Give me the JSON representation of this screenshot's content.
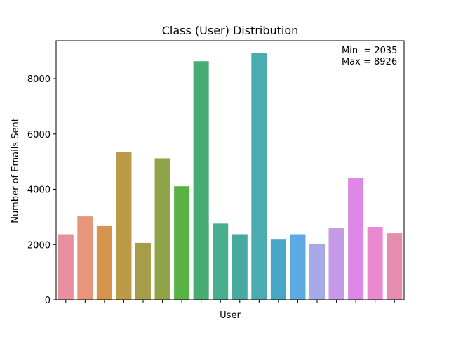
{
  "chart_data": {
    "type": "bar",
    "title": "Class (User) Distribution",
    "xlabel": "User",
    "ylabel": "Number of Emails Sent",
    "ylim": [
      0,
      9373
    ],
    "yticks": [
      0,
      2000,
      4000,
      6000,
      8000
    ],
    "grid": false,
    "legend": "none",
    "annotation": {
      "min_text": "Min  = 2035",
      "max_text": "Max = 8926"
    },
    "values": [
      2350,
      3020,
      2670,
      5350,
      2060,
      5120,
      4110,
      8630,
      2760,
      2350,
      8926,
      2180,
      2350,
      2035,
      2590,
      4410,
      2640,
      2410
    ],
    "colors": [
      "#e8919e",
      "#e8967b",
      "#d5954d",
      "#bb9b48",
      "#a59d49",
      "#8fa446",
      "#5ab245",
      "#47ab74",
      "#49ae8f",
      "#48a99e",
      "#4aabb0",
      "#48a7c6",
      "#5ea9e2",
      "#a7aae9",
      "#c59ae8",
      "#dd88e7",
      "#e989cf",
      "#e68dae"
    ]
  }
}
